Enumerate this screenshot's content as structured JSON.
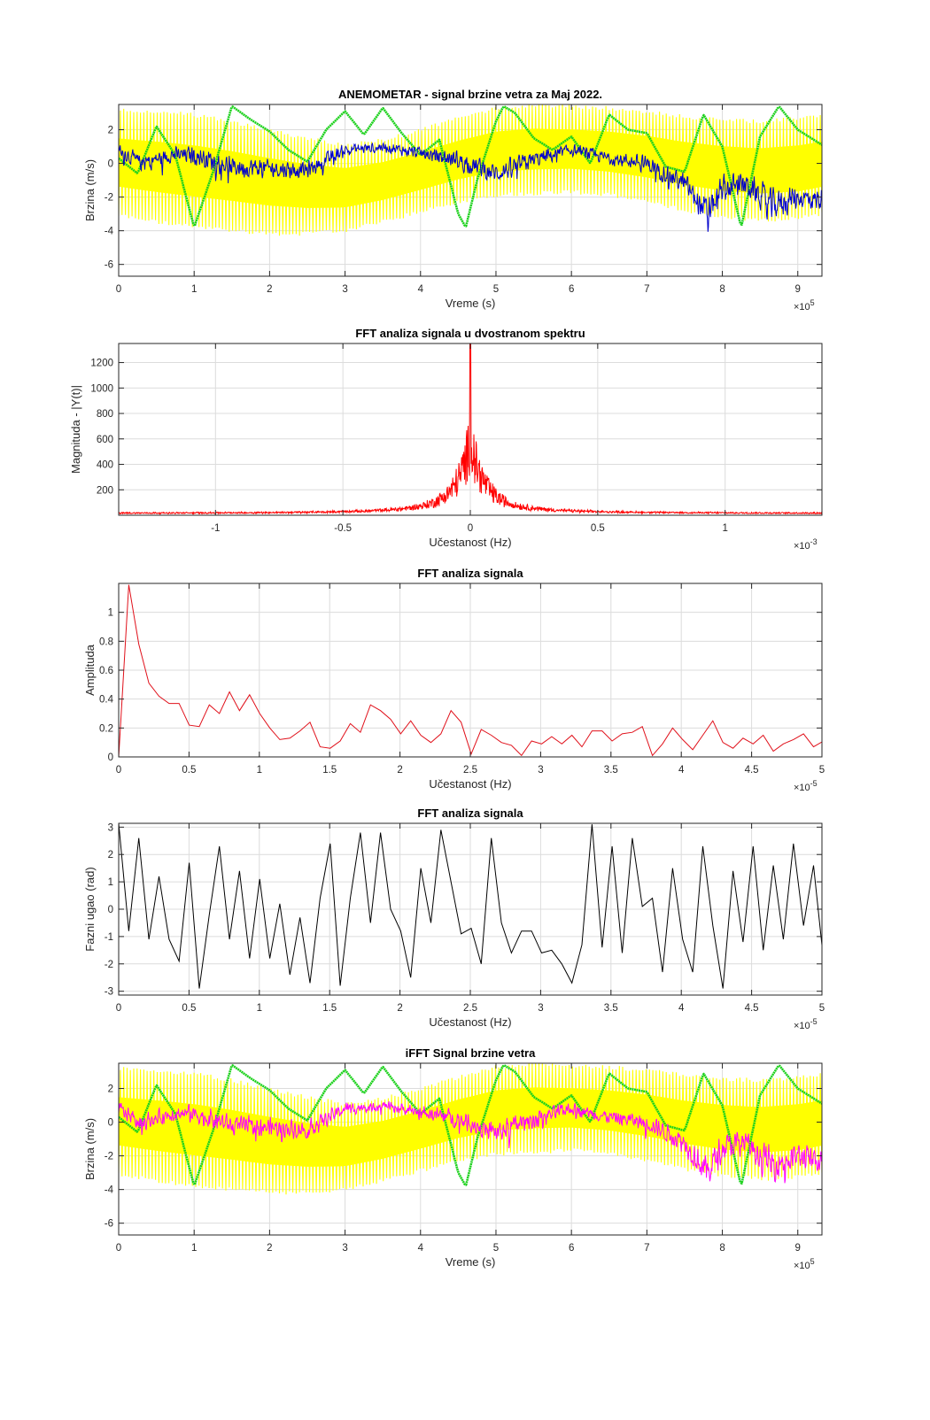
{
  "figure": {
    "background": "#ffffff"
  },
  "chart_data": [
    {
      "type": "line",
      "title": "ANEMOMETAR - signal brzine vetra za Maj 2022.",
      "xlabel": "Vreme (s)",
      "ylabel": "Brzina (m/s)",
      "xlim": [
        0,
        9.32
      ],
      "ylim": [
        -6.7,
        3.5
      ],
      "x_multiplier_label": [
        "×10",
        "5"
      ],
      "xticks": [
        0,
        1,
        2,
        3,
        4,
        5,
        6,
        7,
        8,
        9
      ],
      "xtick_labels": [
        "0",
        "1",
        "2",
        "3",
        "4",
        "5",
        "6",
        "7",
        "8",
        "9"
      ],
      "yticks": [
        -6,
        -4,
        -2,
        0,
        2
      ],
      "ytick_labels": [
        "-6",
        "-4",
        "-2",
        "0",
        "2"
      ],
      "grid": true,
      "series": [
        {
          "kind": "band",
          "color": "#ffff00",
          "x": [
            0,
            0.5,
            1,
            1.5,
            2,
            2.5,
            3,
            3.5,
            4,
            4.5,
            5,
            5.5,
            6,
            6.5,
            7,
            7.5,
            8,
            8.5,
            9,
            9.32
          ],
          "upper": [
            3.3,
            3.2,
            3.0,
            2.6,
            2.1,
            1.6,
            1.2,
            1.5,
            2.1,
            2.8,
            3.4,
            3.6,
            3.5,
            3.4,
            3.2,
            2.9,
            2.7,
            2.6,
            2.8,
            3.0
          ],
          "lower": [
            -3.2,
            -3.6,
            -3.9,
            -4.1,
            -4.3,
            -4.3,
            -4.1,
            -3.6,
            -3.0,
            -2.4,
            -2.0,
            -1.9,
            -1.8,
            -2.0,
            -2.4,
            -2.9,
            -3.3,
            -3.5,
            -3.4,
            -3.1
          ]
        },
        {
          "kind": "line",
          "color": "#1cd11c",
          "x": [
            0,
            0.25,
            0.5,
            0.75,
            1.0,
            1.25,
            1.5,
            1.75,
            2.0,
            2.25,
            2.5,
            2.75,
            3.0,
            3.25,
            3.5,
            3.75,
            4.0,
            4.25,
            4.5,
            4.6,
            4.75,
            5.0,
            5.1,
            5.25,
            5.5,
            5.75,
            6.0,
            6.25,
            6.5,
            6.75,
            7.0,
            7.25,
            7.5,
            7.75,
            8.0,
            8.25,
            8.5,
            8.75,
            9.0,
            9.32
          ],
          "y": [
            0.3,
            -0.6,
            2.2,
            0.5,
            -3.8,
            -0.5,
            3.4,
            2.6,
            1.9,
            0.8,
            0.1,
            2.0,
            3.1,
            1.7,
            3.3,
            1.8,
            0.5,
            1.4,
            -3.0,
            -3.8,
            -1.0,
            2.5,
            3.4,
            3.0,
            1.5,
            0.8,
            1.6,
            0.0,
            2.9,
            2.0,
            1.8,
            -0.2,
            -0.5,
            2.9,
            1.0,
            -3.8,
            1.6,
            3.4,
            2.0,
            1.1
          ]
        },
        {
          "kind": "noise",
          "color": "#0000cc",
          "x": [
            0,
            0.3,
            0.7,
            1.0,
            1.5,
            2.0,
            2.5,
            3.0,
            3.5,
            4.0,
            4.5,
            5.0,
            5.5,
            6.0,
            6.5,
            7.0,
            7.5,
            7.8,
            8.0,
            8.3,
            8.65,
            9.0,
            9.32
          ],
          "y": [
            0.8,
            0.0,
            0.5,
            0.5,
            -0.2,
            -0.3,
            -0.4,
            0.8,
            1.0,
            0.6,
            0.2,
            -0.6,
            0.2,
            0.8,
            0.3,
            0.0,
            -1.2,
            -3.0,
            -1.5,
            -1.2,
            -2.5,
            -2.0,
            -2.2
          ],
          "amp": [
            0.7,
            0.8,
            0.7,
            0.9,
            1.0,
            0.9,
            0.8,
            0.6,
            0.5,
            0.6,
            0.9,
            1.0,
            0.9,
            0.6,
            0.6,
            0.8,
            1.0,
            1.5,
            1.3,
            1.1,
            1.6,
            1.2,
            1.1
          ]
        }
      ]
    },
    {
      "type": "line",
      "title": "FFT analiza signala u dvostranom spektru",
      "xlabel": "Učestanost (Hz)",
      "ylabel": "Magnituda - |Y(t)|",
      "xlim": [
        -1.38,
        1.38
      ],
      "ylim": [
        0,
        1350
      ],
      "x_multiplier_label": [
        "×10",
        "-3"
      ],
      "xticks": [
        -1,
        -0.5,
        0,
        0.5,
        1
      ],
      "xtick_labels": [
        "-1",
        "-0.5",
        "0",
        "0.5",
        "1"
      ],
      "yticks": [
        200,
        400,
        600,
        800,
        1000,
        1200
      ],
      "ytick_labels": [
        "200",
        "400",
        "600",
        "800",
        "1000",
        "1200"
      ],
      "grid": true,
      "series": [
        {
          "kind": "spectrum",
          "color": "#ff0000",
          "peak": 1350,
          "baseline": 10
        }
      ]
    },
    {
      "type": "line",
      "title": "FFT analiza signala",
      "xlabel": "Učestanost (Hz)",
      "ylabel": "Amplituda",
      "xlim": [
        0,
        5
      ],
      "ylim": [
        0,
        1.2
      ],
      "x_multiplier_label": [
        "×10",
        "-5"
      ],
      "xticks": [
        0,
        0.5,
        1,
        1.5,
        2,
        2.5,
        3,
        3.5,
        4,
        4.5,
        5
      ],
      "xtick_labels": [
        "0",
        "0.5",
        "1",
        "1.5",
        "2",
        "2.5",
        "3",
        "3.5",
        "4",
        "4.5",
        "5"
      ],
      "yticks": [
        0,
        0.2,
        0.4,
        0.6,
        0.8,
        1
      ],
      "ytick_labels": [
        "0",
        "0.2",
        "0.4",
        "0.6",
        "0.8",
        "1"
      ],
      "grid": true,
      "series": [
        {
          "kind": "line",
          "color": "#e0101a",
          "x_step": 0.0716,
          "y": [
            0.0,
            1.19,
            0.78,
            0.51,
            0.42,
            0.37,
            0.37,
            0.22,
            0.21,
            0.36,
            0.3,
            0.45,
            0.32,
            0.43,
            0.3,
            0.2,
            0.12,
            0.13,
            0.18,
            0.24,
            0.07,
            0.06,
            0.11,
            0.23,
            0.17,
            0.36,
            0.32,
            0.26,
            0.16,
            0.25,
            0.15,
            0.1,
            0.16,
            0.32,
            0.24,
            0.02,
            0.19,
            0.15,
            0.1,
            0.08,
            0.01,
            0.11,
            0.09,
            0.14,
            0.09,
            0.15,
            0.07,
            0.18,
            0.18,
            0.11,
            0.16,
            0.17,
            0.21,
            0.01,
            0.09,
            0.2,
            0.12,
            0.05,
            0.15,
            0.25,
            0.1,
            0.06,
            0.13,
            0.09,
            0.15,
            0.04,
            0.09,
            0.12,
            0.16,
            0.07,
            0.11,
            0.09,
            0.16,
            0.1
          ]
        }
      ]
    },
    {
      "type": "line",
      "title": "FFT analiza signala",
      "xlabel": "Učestanost (Hz)",
      "ylabel": "Fazni ugao (rad)",
      "xlim": [
        0,
        5
      ],
      "ylim": [
        -3.14,
        3.14
      ],
      "x_multiplier_label": [
        "×10",
        "-5"
      ],
      "xticks": [
        0,
        0.5,
        1,
        1.5,
        2,
        2.5,
        3,
        3.5,
        4,
        4.5,
        5
      ],
      "xtick_labels": [
        "0",
        "0.5",
        "1",
        "1.5",
        "2",
        "2.5",
        "3",
        "3.5",
        "4",
        "4.5",
        "5"
      ],
      "yticks": [
        -3,
        -2,
        -1,
        0,
        1,
        2,
        3
      ],
      "ytick_labels": [
        "-3",
        "-2",
        "-1",
        "0",
        "1",
        "2",
        "3"
      ],
      "grid": true,
      "series": [
        {
          "kind": "line",
          "color": "#000000",
          "x_step": 0.0716,
          "y": [
            3.14,
            -0.8,
            2.6,
            -1.1,
            1.2,
            -1.1,
            -1.9,
            1.7,
            -2.9,
            -0.2,
            2.3,
            -1.1,
            1.4,
            -1.8,
            1.1,
            -1.8,
            0.2,
            -2.4,
            -0.3,
            -2.7,
            0.4,
            2.4,
            -2.8,
            0.4,
            2.8,
            -0.5,
            2.8,
            0.0,
            -0.8,
            -2.5,
            1.5,
            -0.5,
            2.9,
            1.0,
            -0.9,
            -0.7,
            -2.0,
            2.6,
            -0.5,
            -1.6,
            -0.8,
            -0.8,
            -1.6,
            -1.5,
            -2.0,
            -2.7,
            -1.3,
            3.1,
            -1.4,
            2.3,
            -1.6,
            2.6,
            0.1,
            0.4,
            -2.3,
            1.5,
            -1.1,
            -2.3,
            2.3,
            -0.6,
            -2.9,
            1.4,
            -1.2,
            2.3,
            -1.5,
            1.6,
            -1.1,
            2.4,
            -0.6,
            1.6,
            -1.9,
            0.3,
            -2.8,
            0.6,
            -1.4
          ]
        }
      ]
    },
    {
      "type": "line",
      "title": "iFFT Signal brzine vetra",
      "xlabel": "Vreme (s)",
      "ylabel": "Brzina (m/s)",
      "xlim": [
        0,
        9.32
      ],
      "ylim": [
        -6.7,
        3.5
      ],
      "x_multiplier_label": [
        "×10",
        "5"
      ],
      "xticks": [
        0,
        1,
        2,
        3,
        4,
        5,
        6,
        7,
        8,
        9
      ],
      "xtick_labels": [
        "0",
        "1",
        "2",
        "3",
        "4",
        "5",
        "6",
        "7",
        "8",
        "9"
      ],
      "yticks": [
        -6,
        -4,
        -2,
        0,
        2
      ],
      "ytick_labels": [
        "-6",
        "-4",
        "-2",
        "0",
        "2"
      ],
      "grid": true,
      "series": [
        {
          "kind": "band",
          "color": "#ffff00",
          "x": [
            0,
            0.5,
            1,
            1.5,
            2,
            2.5,
            3,
            3.5,
            4,
            4.5,
            5,
            5.5,
            6,
            6.5,
            7,
            7.5,
            8,
            8.5,
            9,
            9.32
          ],
          "upper": [
            3.3,
            3.2,
            3.0,
            2.6,
            2.1,
            1.6,
            1.2,
            1.5,
            2.1,
            2.8,
            3.4,
            3.6,
            3.5,
            3.4,
            3.2,
            2.9,
            2.7,
            2.6,
            2.8,
            3.0
          ],
          "lower": [
            -3.2,
            -3.6,
            -3.9,
            -4.1,
            -4.3,
            -4.3,
            -4.1,
            -3.6,
            -3.0,
            -2.4,
            -2.0,
            -1.9,
            -1.8,
            -2.0,
            -2.4,
            -2.9,
            -3.3,
            -3.5,
            -3.4,
            -3.1
          ]
        },
        {
          "kind": "line",
          "color": "#1cd11c",
          "x": [
            0,
            0.25,
            0.5,
            0.75,
            1.0,
            1.25,
            1.5,
            1.75,
            2.0,
            2.25,
            2.5,
            2.75,
            3.0,
            3.25,
            3.5,
            3.75,
            4.0,
            4.25,
            4.5,
            4.6,
            4.75,
            5.0,
            5.1,
            5.25,
            5.5,
            5.75,
            6.0,
            6.25,
            6.5,
            6.75,
            7.0,
            7.25,
            7.5,
            7.75,
            8.0,
            8.25,
            8.5,
            8.75,
            9.0,
            9.32
          ],
          "y": [
            0.3,
            -0.6,
            2.2,
            0.5,
            -3.8,
            -0.5,
            3.4,
            2.6,
            1.9,
            0.8,
            0.1,
            2.0,
            3.1,
            1.7,
            3.3,
            1.8,
            0.5,
            1.4,
            -3.0,
            -3.8,
            -1.0,
            2.5,
            3.4,
            3.0,
            1.5,
            0.8,
            1.6,
            0.0,
            2.9,
            2.0,
            1.8,
            -0.2,
            -0.5,
            2.9,
            1.0,
            -3.8,
            1.6,
            3.4,
            2.0,
            1.1
          ]
        },
        {
          "kind": "noise",
          "color": "#ff00ff",
          "x": [
            0,
            0.3,
            0.7,
            1.0,
            1.5,
            2.0,
            2.5,
            3.0,
            3.5,
            4.0,
            4.5,
            5.0,
            5.5,
            6.0,
            6.5,
            7.0,
            7.5,
            7.8,
            8.0,
            8.3,
            8.65,
            9.0,
            9.32
          ],
          "y": [
            0.8,
            0.0,
            0.5,
            0.5,
            -0.2,
            -0.3,
            -0.4,
            0.8,
            1.0,
            0.6,
            0.2,
            -0.6,
            0.2,
            0.8,
            0.3,
            0.0,
            -1.2,
            -3.0,
            -1.5,
            -1.2,
            -2.5,
            -2.0,
            -2.2
          ],
          "amp": [
            0.7,
            0.8,
            0.7,
            0.9,
            1.0,
            0.9,
            0.8,
            0.6,
            0.5,
            0.6,
            0.9,
            1.0,
            0.9,
            0.6,
            0.6,
            0.8,
            1.0,
            1.5,
            1.3,
            1.1,
            1.6,
            1.2,
            1.1
          ]
        }
      ]
    }
  ]
}
